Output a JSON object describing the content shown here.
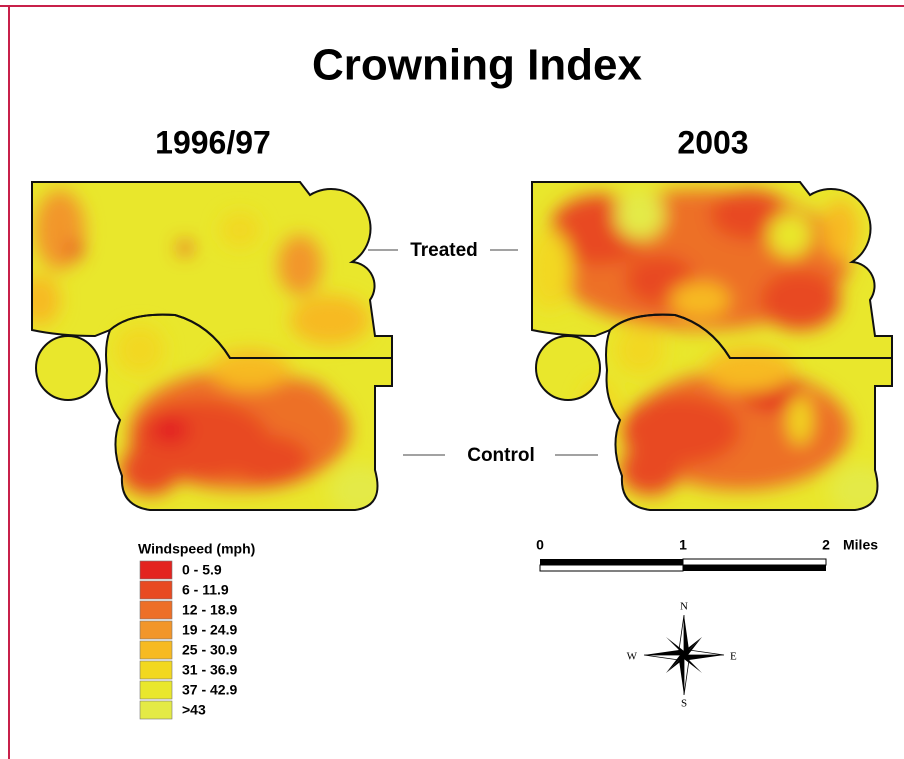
{
  "title": "Crowning Index",
  "panels": [
    {
      "title": "1996/97"
    },
    {
      "title": "2003"
    }
  ],
  "region_labels": {
    "treated": "Treated",
    "control": "Control"
  },
  "legend": {
    "title": "Windspeed (mph)",
    "items": [
      {
        "label": "0 - 5.9",
        "color": "#e32420"
      },
      {
        "label": "6 - 11.9",
        "color": "#e84a22"
      },
      {
        "label": "12 - 18.9",
        "color": "#ed6f27"
      },
      {
        "label": "19 - 24.9",
        "color": "#f2962a"
      },
      {
        "label": "25 - 30.9",
        "color": "#f7ba22"
      },
      {
        "label": "31 - 36.9",
        "color": "#f2d820"
      },
      {
        "label": "37 - 42.9",
        "color": "#e9e72c"
      },
      {
        "label": ">43",
        "color": "#e4ea46"
      }
    ]
  },
  "scale_bar": {
    "labels": [
      "0",
      "1",
      "2"
    ],
    "unit": "Miles"
  },
  "compass": {
    "n": "N",
    "s": "S",
    "e": "E",
    "w": "W"
  }
}
